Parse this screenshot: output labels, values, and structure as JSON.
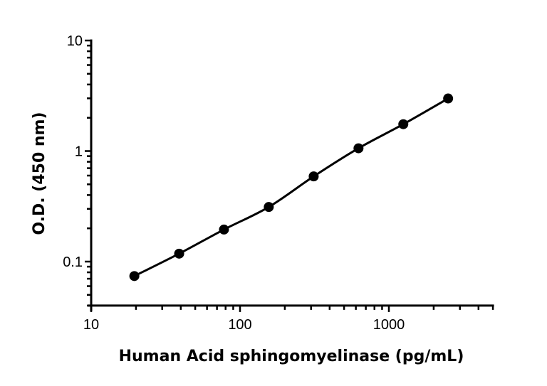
{
  "chart_data": {
    "type": "scatter",
    "title": "",
    "xlabel": "Human Acid sphingomyelinase (pg/mL)",
    "ylabel": "O.D. (450 nm)",
    "xscale": "log",
    "yscale": "log",
    "xlim": [
      10,
      5000
    ],
    "ylim": [
      0.04,
      10
    ],
    "x_ticks": [
      10,
      100,
      1000
    ],
    "x_tick_labels": [
      "10",
      "100",
      "1000"
    ],
    "y_ticks": [
      0.1,
      1,
      10
    ],
    "y_tick_labels": [
      "0.1",
      "1",
      "10"
    ],
    "grid": false,
    "legend": "none",
    "fit_curve": true,
    "color": "#000000",
    "series": [
      {
        "x": [
          19.5,
          39,
          78,
          156,
          312.5,
          625,
          1250,
          2500
        ],
        "y": [
          0.074,
          0.118,
          0.195,
          0.312,
          0.59,
          1.06,
          1.75,
          2.99
        ]
      }
    ]
  }
}
